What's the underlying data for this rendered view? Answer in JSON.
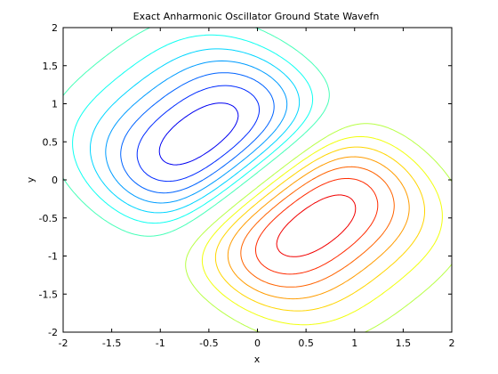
{
  "chart_data": {
    "type": "contour",
    "title": "Exact Anharmonic Oscillator Ground State Wavefn",
    "xlabel": "x",
    "ylabel": "y",
    "xlim": [
      -2,
      2
    ],
    "ylim": [
      -2,
      2
    ],
    "xticks": [
      "-2",
      "-1.5",
      "-1",
      "-0.5",
      "0",
      "0.5",
      "1",
      "1.5",
      "2"
    ],
    "yticks": [
      "-2",
      "-1.5",
      "-1",
      "-0.5",
      "0",
      "0.5",
      "1",
      "1.5",
      "2"
    ],
    "grid": false,
    "box": true,
    "colormap": "jet",
    "lobes": [
      {
        "sign": "positive",
        "center": [
          -0.5,
          0.45
        ],
        "color": "#8b0000"
      },
      {
        "sign": "negative",
        "center": [
          0.5,
          -0.45
        ],
        "color": "#00008b"
      }
    ],
    "levels": [
      -0.9,
      -0.8,
      -0.7,
      -0.6,
      -0.5,
      -0.4,
      -0.3,
      -0.2,
      -0.1,
      0.1,
      0.2,
      0.3,
      0.4,
      0.5,
      0.6,
      0.7,
      0.8,
      0.9
    ]
  }
}
